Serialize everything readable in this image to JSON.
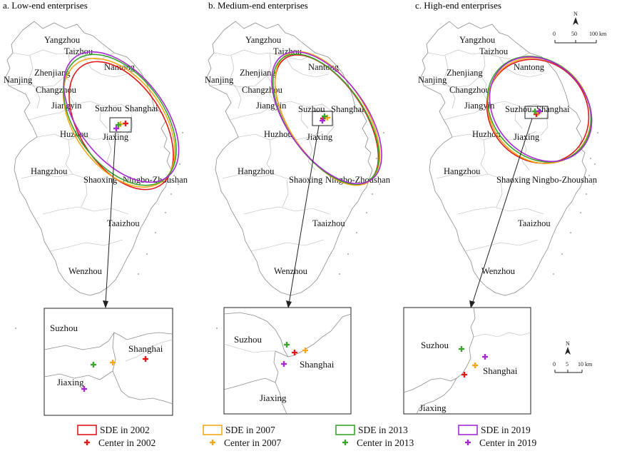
{
  "panels": [
    {
      "title": "a. Low-end enterprises",
      "cities": [
        "Yangzhou",
        "Taizhou",
        "Nantong",
        "Nanjing",
        "Zhenjiang",
        "Changzhou",
        "Jiangyin",
        "Suzhou",
        "Shanghai",
        "Huzhou",
        "Jiaxing",
        "Hangzhou",
        "Shaoxing",
        "Ningbo-Zhoushan",
        "Taaizhou",
        "Wenzhou"
      ],
      "inset_labels": [
        "Suzhou",
        "Shanghai",
        "Jiaxing"
      ]
    },
    {
      "title": "b. Medium-end enterprises",
      "cities": [
        "Yangzhou",
        "Taizhou",
        "Nantong",
        "Nanjing",
        "Zhenjiang",
        "Changzhou",
        "Jiangyin",
        "Suzhou",
        "Shanghai",
        "Huzhou",
        "Jiaxing",
        "Hangzhou",
        "Shaoxing",
        "Ningbo-Zhoushan",
        "Taaizhou",
        "Wenzhou"
      ],
      "inset_labels": [
        "Suzhou",
        "Shanghai",
        "Jiaxing"
      ]
    },
    {
      "title": "c. High-end enterprises",
      "cities": [
        "Yangzhou",
        "Taizhou",
        "Nantong",
        "Nanjing",
        "Zhenjiang",
        "Changzhou",
        "Jiangyin",
        "Suzhou",
        "Shanghai",
        "Huzhou",
        "Jiaxing",
        "Hangzhou",
        "Shaoxing",
        "Ningbo-Zhoushan",
        "Taaizhou",
        "Wenzhou"
      ],
      "inset_labels": [
        "Suzhou",
        "Shanghai",
        "Jiaxing"
      ]
    }
  ],
  "legend": {
    "sde": [
      "SDE in 2002",
      "SDE in 2007",
      "SDE in 2013",
      "SDE in 2019"
    ],
    "center": [
      "Center in 2002",
      "Center in 2007",
      "Center in 2013",
      "Center in 2019"
    ]
  },
  "colors": {
    "y2002": "#e0191b",
    "y2007": "#f4a81c",
    "y2013": "#3aa52c",
    "y2019": "#a52ad3"
  },
  "north_arrow": {
    "label": "N"
  },
  "scale_main": {
    "ticks": [
      "0",
      "50",
      "100 km"
    ]
  },
  "scale_inset": {
    "ticks": [
      "0",
      "5",
      "10 km"
    ]
  }
}
